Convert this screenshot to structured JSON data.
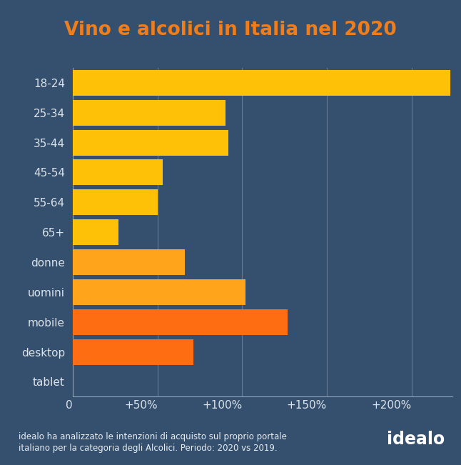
{
  "chart_data": {
    "type": "bar",
    "orientation": "horizontal",
    "title": "Vino e alcolici in Italia nel 2020",
    "categories": [
      "18-24",
      "25-34",
      "35-44",
      "45-54",
      "55-64",
      "65+",
      "donne",
      "uomini",
      "mobile",
      "desktop",
      "tablet"
    ],
    "values": [
      223,
      90,
      92,
      53,
      50,
      27,
      66,
      102,
      127,
      71,
      0
    ],
    "colors": [
      "#FFC107",
      "#FFC107",
      "#FFC107",
      "#FFC107",
      "#FFC107",
      "#FFC107",
      "#FFA41B",
      "#FFA41B",
      "#FF6D12",
      "#FF6D12",
      "#FF6D12"
    ],
    "xlim": [
      0,
      224
    ],
    "xticks": [
      0,
      {
        "value": 50,
        "label": "+50%"
      },
      {
        "value": 100,
        "label": "+100%"
      },
      {
        "value": 150,
        "label": "+150%"
      },
      {
        "value": 200,
        "label": "+200%"
      }
    ],
    "grid": true,
    "footnote": "idealo ha analizzato le intenzioni di acquisto sul proprio portale\nitaliano per la categoria degli Alcolici. Periodo: 2020 vs 2019.",
    "brand": "idealo"
  }
}
